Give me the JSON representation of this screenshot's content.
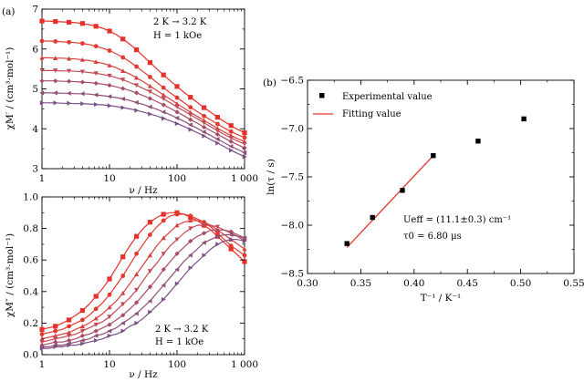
{
  "chart_data": [
    {
      "panel": "(a)",
      "type": "line",
      "xscale": "log",
      "xlim": [
        1,
        1000
      ],
      "ylim": [
        3,
        7
      ],
      "xticks": [
        1,
        10,
        100,
        1000
      ],
      "xtick_labels": [
        "1",
        "10",
        "100",
        "1 000"
      ],
      "yticks": [
        3,
        4,
        5,
        6,
        7
      ],
      "xlabel": "ν / Hz",
      "ylabel": "χM′ / (cm³·mol⁻¹)",
      "annotations": [
        "2 K → 3.2 K",
        "H = 1 kOe"
      ],
      "legend": [],
      "x": [
        1,
        1.26,
        1.58,
        2,
        2.51,
        3.16,
        3.98,
        5.01,
        6.31,
        7.94,
        10,
        12.6,
        15.8,
        20,
        25.1,
        31.6,
        39.8,
        50.1,
        63.1,
        79.4,
        100,
        126,
        158,
        200,
        251,
        316,
        398,
        501,
        631,
        794,
        1000
      ],
      "series": [
        {
          "color": "#e8302a",
          "marker": "square",
          "values": [
            6.7,
            6.7,
            6.69,
            6.68,
            6.67,
            6.66,
            6.64,
            6.61,
            6.57,
            6.52,
            6.45,
            6.36,
            6.25,
            6.12,
            5.98,
            5.82,
            5.66,
            5.5,
            5.35,
            5.2,
            5.06,
            4.92,
            4.79,
            4.66,
            4.53,
            4.41,
            4.29,
            4.18,
            4.08,
            3.98,
            3.9
          ]
        },
        {
          "color": "#e33a30",
          "marker": "circle",
          "values": [
            6.2,
            6.2,
            6.19,
            6.18,
            6.17,
            6.16,
            6.14,
            6.11,
            6.07,
            6.02,
            5.96,
            5.88,
            5.79,
            5.68,
            5.56,
            5.43,
            5.3,
            5.16,
            5.03,
            4.9,
            4.78,
            4.66,
            4.54,
            4.43,
            4.32,
            4.22,
            4.12,
            4.02,
            3.93,
            3.85,
            3.78
          ]
        },
        {
          "color": "#d84040",
          "marker": "triangle-up",
          "values": [
            5.78,
            5.78,
            5.77,
            5.77,
            5.76,
            5.75,
            5.73,
            5.71,
            5.68,
            5.64,
            5.59,
            5.53,
            5.45,
            5.37,
            5.28,
            5.18,
            5.07,
            4.96,
            4.85,
            4.74,
            4.63,
            4.52,
            4.41,
            4.31,
            4.21,
            4.11,
            4.01,
            3.92,
            3.83,
            3.75,
            3.68
          ]
        },
        {
          "color": "#c24a55",
          "marker": "triangle-down",
          "values": [
            5.46,
            5.46,
            5.46,
            5.45,
            5.45,
            5.44,
            5.43,
            5.41,
            5.39,
            5.36,
            5.33,
            5.28,
            5.23,
            5.16,
            5.09,
            5.01,
            4.93,
            4.84,
            4.75,
            4.65,
            4.55,
            4.45,
            4.35,
            4.25,
            4.15,
            4.05,
            3.95,
            3.86,
            3.77,
            3.69,
            3.62
          ]
        },
        {
          "color": "#a84b66",
          "marker": "diamond",
          "values": [
            5.2,
            5.2,
            5.2,
            5.19,
            5.19,
            5.18,
            5.17,
            5.16,
            5.14,
            5.12,
            5.09,
            5.05,
            5.01,
            4.96,
            4.9,
            4.83,
            4.76,
            4.68,
            4.6,
            4.51,
            4.42,
            4.33,
            4.23,
            4.14,
            4.04,
            3.95,
            3.86,
            3.77,
            3.68,
            3.6,
            3.52
          ]
        },
        {
          "color": "#8f4f76",
          "marker": "triangle-left",
          "values": [
            4.9,
            4.9,
            4.9,
            4.89,
            4.89,
            4.88,
            4.88,
            4.87,
            4.85,
            4.83,
            4.81,
            4.78,
            4.75,
            4.71,
            4.66,
            4.61,
            4.55,
            4.49,
            4.42,
            4.35,
            4.27,
            4.19,
            4.1,
            4.01,
            3.92,
            3.83,
            3.74,
            3.65,
            3.56,
            3.48,
            3.4
          ]
        },
        {
          "color": "#7a4f86",
          "marker": "triangle-right",
          "values": [
            4.65,
            4.65,
            4.65,
            4.64,
            4.64,
            4.63,
            4.63,
            4.62,
            4.61,
            4.6,
            4.58,
            4.56,
            4.53,
            4.5,
            4.46,
            4.42,
            4.37,
            4.32,
            4.26,
            4.2,
            4.13,
            4.06,
            3.98,
            3.9,
            3.82,
            3.73,
            3.64,
            3.55,
            3.46,
            3.38,
            3.3
          ]
        }
      ]
    },
    {
      "panel": "",
      "type": "line",
      "xscale": "log",
      "xlim": [
        1,
        1000
      ],
      "ylim": [
        0,
        1.0
      ],
      "xticks": [
        1,
        10,
        100,
        1000
      ],
      "xtick_labels": [
        "1",
        "10",
        "100",
        "1 000"
      ],
      "yticks": [
        0,
        0.2,
        0.4,
        0.6,
        0.8,
        1.0
      ],
      "ytick_labels": [
        "0.0",
        "0.2",
        "0.4",
        "0.6",
        "0.8",
        "1.0"
      ],
      "xlabel": "ν / Hz",
      "ylabel": "χM″ / (cm³·mol⁻¹)",
      "annotations": [
        "2 K → 3.2 K",
        "H = 1 kOe"
      ],
      "legend": [],
      "x": [
        1,
        1.26,
        1.58,
        2,
        2.51,
        3.16,
        3.98,
        5.01,
        6.31,
        7.94,
        10,
        12.6,
        15.8,
        20,
        25.1,
        31.6,
        39.8,
        50.1,
        63.1,
        79.4,
        100,
        126,
        158,
        200,
        251,
        316,
        398,
        501,
        631,
        794,
        1000
      ],
      "series": [
        {
          "color": "#e8302a",
          "marker": "square",
          "values": [
            0.16,
            0.17,
            0.18,
            0.2,
            0.22,
            0.25,
            0.28,
            0.32,
            0.37,
            0.42,
            0.48,
            0.55,
            0.62,
            0.69,
            0.75,
            0.8,
            0.84,
            0.87,
            0.89,
            0.9,
            0.9,
            0.89,
            0.87,
            0.85,
            0.82,
            0.79,
            0.75,
            0.71,
            0.67,
            0.63,
            0.59
          ]
        },
        {
          "color": "#e33a30",
          "marker": "circle",
          "values": [
            0.13,
            0.14,
            0.15,
            0.16,
            0.18,
            0.2,
            0.22,
            0.25,
            0.29,
            0.33,
            0.38,
            0.44,
            0.5,
            0.57,
            0.64,
            0.7,
            0.76,
            0.81,
            0.85,
            0.88,
            0.89,
            0.89,
            0.88,
            0.86,
            0.84,
            0.81,
            0.77,
            0.73,
            0.69,
            0.66,
            0.63
          ]
        },
        {
          "color": "#d84040",
          "marker": "triangle-up",
          "values": [
            0.1,
            0.11,
            0.12,
            0.13,
            0.14,
            0.16,
            0.18,
            0.2,
            0.23,
            0.26,
            0.3,
            0.34,
            0.39,
            0.45,
            0.51,
            0.57,
            0.63,
            0.69,
            0.74,
            0.78,
            0.82,
            0.84,
            0.85,
            0.85,
            0.84,
            0.82,
            0.79,
            0.76,
            0.73,
            0.7,
            0.67
          ]
        },
        {
          "color": "#c24a55",
          "marker": "triangle-down",
          "values": [
            0.08,
            0.09,
            0.1,
            0.11,
            0.12,
            0.13,
            0.15,
            0.17,
            0.19,
            0.21,
            0.24,
            0.28,
            0.32,
            0.36,
            0.41,
            0.47,
            0.53,
            0.58,
            0.64,
            0.69,
            0.73,
            0.77,
            0.8,
            0.82,
            0.82,
            0.82,
            0.81,
            0.79,
            0.77,
            0.75,
            0.72
          ]
        },
        {
          "color": "#a84b66",
          "marker": "diamond",
          "values": [
            0.06,
            0.07,
            0.08,
            0.08,
            0.09,
            0.1,
            0.12,
            0.13,
            0.15,
            0.17,
            0.19,
            0.22,
            0.25,
            0.29,
            0.33,
            0.38,
            0.43,
            0.48,
            0.54,
            0.59,
            0.64,
            0.68,
            0.72,
            0.75,
            0.77,
            0.79,
            0.79,
            0.79,
            0.78,
            0.76,
            0.74
          ]
        },
        {
          "color": "#8f4f76",
          "marker": "triangle-left",
          "values": [
            0.05,
            0.05,
            0.06,
            0.06,
            0.07,
            0.08,
            0.09,
            0.1,
            0.12,
            0.13,
            0.15,
            0.17,
            0.2,
            0.23,
            0.26,
            0.3,
            0.34,
            0.39,
            0.44,
            0.49,
            0.54,
            0.59,
            0.63,
            0.67,
            0.71,
            0.73,
            0.75,
            0.76,
            0.76,
            0.75,
            0.74
          ]
        },
        {
          "color": "#7a4f86",
          "marker": "triangle-right",
          "values": [
            0.04,
            0.04,
            0.05,
            0.05,
            0.06,
            0.06,
            0.07,
            0.08,
            0.09,
            0.1,
            0.12,
            0.13,
            0.15,
            0.18,
            0.2,
            0.23,
            0.27,
            0.31,
            0.35,
            0.4,
            0.45,
            0.5,
            0.55,
            0.59,
            0.63,
            0.67,
            0.7,
            0.72,
            0.73,
            0.73,
            0.72
          ]
        }
      ]
    },
    {
      "panel": "(b)",
      "type": "scatter",
      "xlim": [
        0.3,
        0.55
      ],
      "ylim": [
        -8.5,
        -6.5
      ],
      "xticks": [
        0.3,
        0.35,
        0.4,
        0.45,
        0.5,
        0.55
      ],
      "xtick_labels": [
        "0.30",
        "0.35",
        "0.40",
        "0.45",
        "0.50",
        "0.55"
      ],
      "yticks": [
        -8.5,
        -8.0,
        -7.5,
        -7.0,
        -6.5
      ],
      "ytick_labels": [
        "−8.5",
        "−8.0",
        "−7.5",
        "−7.0",
        "−6.5"
      ],
      "xlabel": "T⁻¹ / K⁻¹",
      "ylabel": "ln(τ / s)",
      "legend": [
        {
          "label": "Experimental value",
          "kind": "marker"
        },
        {
          "label": "Fitting value",
          "kind": "line"
        }
      ],
      "annotations": [
        "Ueff = (11.1±0.3) cm⁻¹",
        "τ0 = 6.80 μs"
      ],
      "points": {
        "x": [
          0.337,
          0.361,
          0.389,
          0.418,
          0.46,
          0.503
        ],
        "y": [
          -8.19,
          -7.92,
          -7.64,
          -7.28,
          -7.13,
          -6.9
        ],
        "color": "#000000"
      },
      "fit": {
        "x": [
          0.337,
          0.418
        ],
        "y": [
          -8.23,
          -7.28
        ],
        "color": "#e8302a"
      }
    }
  ]
}
